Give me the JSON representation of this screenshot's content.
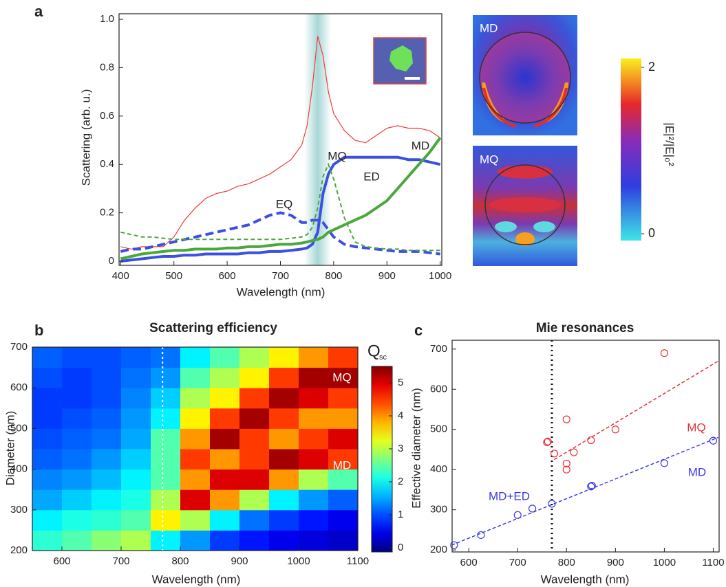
{
  "panel_labels": [
    "a",
    "b",
    "c"
  ],
  "field_maps": {
    "labels": [
      "MD",
      "MQ"
    ],
    "colorbar": {
      "label": "|E|²/|E|₀²",
      "lim": [
        0,
        2
      ],
      "ticks": [
        0,
        2
      ]
    }
  },
  "chart_data": [
    {
      "type": "line",
      "x_label": "Wavelength (nm)",
      "y_label": "Scattering (arb. u.)",
      "x": [
        400,
        420,
        440,
        460,
        480,
        500,
        520,
        540,
        560,
        580,
        600,
        620,
        640,
        660,
        680,
        700,
        720,
        740,
        750,
        760,
        770,
        780,
        790,
        800,
        820,
        840,
        860,
        880,
        900,
        920,
        940,
        960,
        980,
        1000
      ],
      "series": [
        {
          "color": "#f03a3a",
          "style": "solid",
          "values": [
            0.06,
            0.05,
            0.06,
            0.06,
            0.06,
            0.1,
            0.17,
            0.22,
            0.26,
            0.28,
            0.29,
            0.31,
            0.32,
            0.34,
            0.36,
            0.39,
            0.42,
            0.48,
            0.56,
            0.72,
            0.93,
            0.85,
            0.7,
            0.61,
            0.54,
            0.5,
            0.49,
            0.52,
            0.55,
            0.56,
            0.55,
            0.55,
            0.54,
            0.51
          ]
        },
        {
          "name": "ED",
          "color": "#3b4fe0",
          "style": "solid",
          "values": [
            0.0,
            0.005,
            0.01,
            0.015,
            0.02,
            0.02,
            0.025,
            0.025,
            0.03,
            0.03,
            0.03,
            0.03,
            0.035,
            0.035,
            0.04,
            0.04,
            0.045,
            0.05,
            0.055,
            0.07,
            0.12,
            0.28,
            0.36,
            0.4,
            0.43,
            0.43,
            0.43,
            0.43,
            0.43,
            0.43,
            0.42,
            0.42,
            0.41,
            0.4
          ]
        },
        {
          "name": "EQ",
          "color": "#3b4fe0",
          "style": "dashed",
          "values": [
            0.04,
            0.05,
            0.05,
            0.06,
            0.07,
            0.08,
            0.09,
            0.1,
            0.11,
            0.12,
            0.13,
            0.14,
            0.15,
            0.17,
            0.19,
            0.2,
            0.19,
            0.16,
            0.16,
            0.17,
            0.17,
            0.16,
            0.13,
            0.1,
            0.07,
            0.06,
            0.055,
            0.05,
            0.045,
            0.04,
            0.04,
            0.04,
            0.035,
            0.03
          ]
        },
        {
          "name": "MD",
          "color": "#4aa83a",
          "style": "solid",
          "values": [
            0.01,
            0.02,
            0.03,
            0.035,
            0.04,
            0.045,
            0.045,
            0.05,
            0.05,
            0.05,
            0.055,
            0.055,
            0.06,
            0.06,
            0.065,
            0.07,
            0.07,
            0.075,
            0.08,
            0.085,
            0.09,
            0.1,
            0.12,
            0.13,
            0.15,
            0.17,
            0.19,
            0.22,
            0.25,
            0.3,
            0.35,
            0.4,
            0.45,
            0.51
          ]
        },
        {
          "name": "MQ",
          "color": "#4aa83a",
          "style": "dashed",
          "values": [
            0.12,
            0.11,
            0.1,
            0.1,
            0.095,
            0.09,
            0.09,
            0.09,
            0.09,
            0.09,
            0.09,
            0.09,
            0.09,
            0.09,
            0.09,
            0.09,
            0.095,
            0.1,
            0.11,
            0.14,
            0.22,
            0.35,
            0.4,
            0.34,
            0.18,
            0.08,
            0.06,
            0.055,
            0.05,
            0.05,
            0.045,
            0.045,
            0.045,
            0.045
          ]
        }
      ],
      "highlight": [
        745,
        795
      ],
      "xlim": [
        397,
        1003
      ],
      "xticks": [
        400,
        500,
        600,
        700,
        800,
        900,
        1000
      ],
      "ylim": [
        -0.017,
        1.023
      ],
      "yticks": [
        0,
        0.2,
        0.4,
        0.6,
        0.8,
        {
          "value": 1.0,
          "label": "1.0"
        }
      ]
    },
    {
      "type": "heatmap",
      "title": "Scattering efficiency",
      "x_label": "Wavelength (nm)",
      "y_label": "Diameter (nm)",
      "x": [
        575,
        625,
        675,
        725,
        775,
        825,
        875,
        925,
        975,
        1025,
        1075
      ],
      "y": [
        225,
        275,
        325,
        375,
        425,
        475,
        525,
        575,
        625,
        675
      ],
      "z": [
        [
          2.3,
          2.5,
          2.8,
          3.0,
          2.0,
          1.5,
          1.0,
          0.8,
          0.6,
          0.5,
          0.4
        ],
        [
          2.0,
          2.2,
          2.3,
          2.5,
          3.5,
          3.0,
          2.0,
          1.3,
          1.0,
          0.8,
          0.6
        ],
        [
          1.6,
          1.8,
          2.0,
          2.2,
          3.0,
          5.0,
          4.0,
          3.0,
          2.0,
          1.5,
          1.2
        ],
        [
          1.4,
          1.5,
          1.7,
          2.0,
          2.5,
          4.0,
          5.0,
          5.0,
          4.0,
          3.0,
          2.5
        ],
        [
          1.2,
          1.3,
          1.5,
          1.8,
          2.5,
          4.5,
          4.0,
          4.5,
          5.3,
          5.0,
          4.5
        ],
        [
          1.1,
          1.2,
          1.3,
          1.6,
          2.5,
          4.0,
          5.3,
          4.5,
          4.0,
          4.5,
          5.0
        ],
        [
          1.0,
          1.1,
          1.2,
          1.5,
          2.0,
          3.5,
          4.5,
          5.3,
          4.5,
          4.0,
          4.0
        ],
        [
          1.0,
          1.0,
          1.1,
          1.4,
          1.8,
          3.0,
          3.5,
          4.5,
          5.3,
          5.0,
          4.5
        ],
        [
          1.1,
          1.0,
          1.1,
          1.3,
          1.5,
          2.5,
          3.0,
          3.5,
          4.5,
          5.3,
          5.3
        ],
        [
          1.2,
          1.1,
          1.1,
          1.2,
          1.3,
          2.0,
          2.5,
          3.0,
          3.5,
          4.0,
          4.5
        ]
      ],
      "xlim": [
        550,
        1100
      ],
      "xticks": [
        600,
        700,
        800,
        900,
        1000,
        1100
      ],
      "ylim": [
        200,
        700
      ],
      "yticks": [
        200,
        300,
        400,
        500,
        600,
        700
      ],
      "colorbar": {
        "label": "Q",
        "subscript": "sc",
        "lim": [
          0,
          5.5
        ],
        "ticks": [
          0,
          1,
          2,
          3,
          4,
          5
        ]
      },
      "vline": 770,
      "annotations": [
        "MQ",
        "MD"
      ]
    },
    {
      "type": "scatter",
      "title": "Mie resonances",
      "x_label": "Wavelength (nm)",
      "y_label": "Effective diameter (nm)",
      "series": [
        {
          "name": "MQ",
          "color": "#e8303a",
          "x": [
            760,
            762,
            775,
            800,
            800,
            800,
            815,
            850,
            900,
            1000
          ],
          "values": [
            468,
            470,
            440,
            525,
            415,
            400,
            443,
            473,
            500,
            690
          ]
        },
        {
          "name": "MD",
          "color": "#3a3ae8",
          "x": [
            570,
            625,
            700,
            730,
            770,
            850,
            852,
            1000,
            1100
          ],
          "values": [
            212,
            237,
            287,
            303,
            315,
            358,
            360,
            416,
            472
          ]
        }
      ],
      "fits": [
        {
          "color": "#e8303a",
          "x": [
            775,
            1110
          ],
          "values": [
            425,
            670
          ]
        },
        {
          "color": "#3a3ae8",
          "x": [
            565,
            1110
          ],
          "values": [
            212,
            480
          ]
        }
      ],
      "vline": 770,
      "annotations": [
        "MD+ED"
      ],
      "xlim": [
        566,
        1112
      ],
      "xticks": [
        600,
        700,
        800,
        900,
        1000,
        1100
      ],
      "ylim": [
        195,
        722
      ],
      "yticks": [
        200,
        300,
        400,
        500,
        600,
        700
      ]
    }
  ]
}
